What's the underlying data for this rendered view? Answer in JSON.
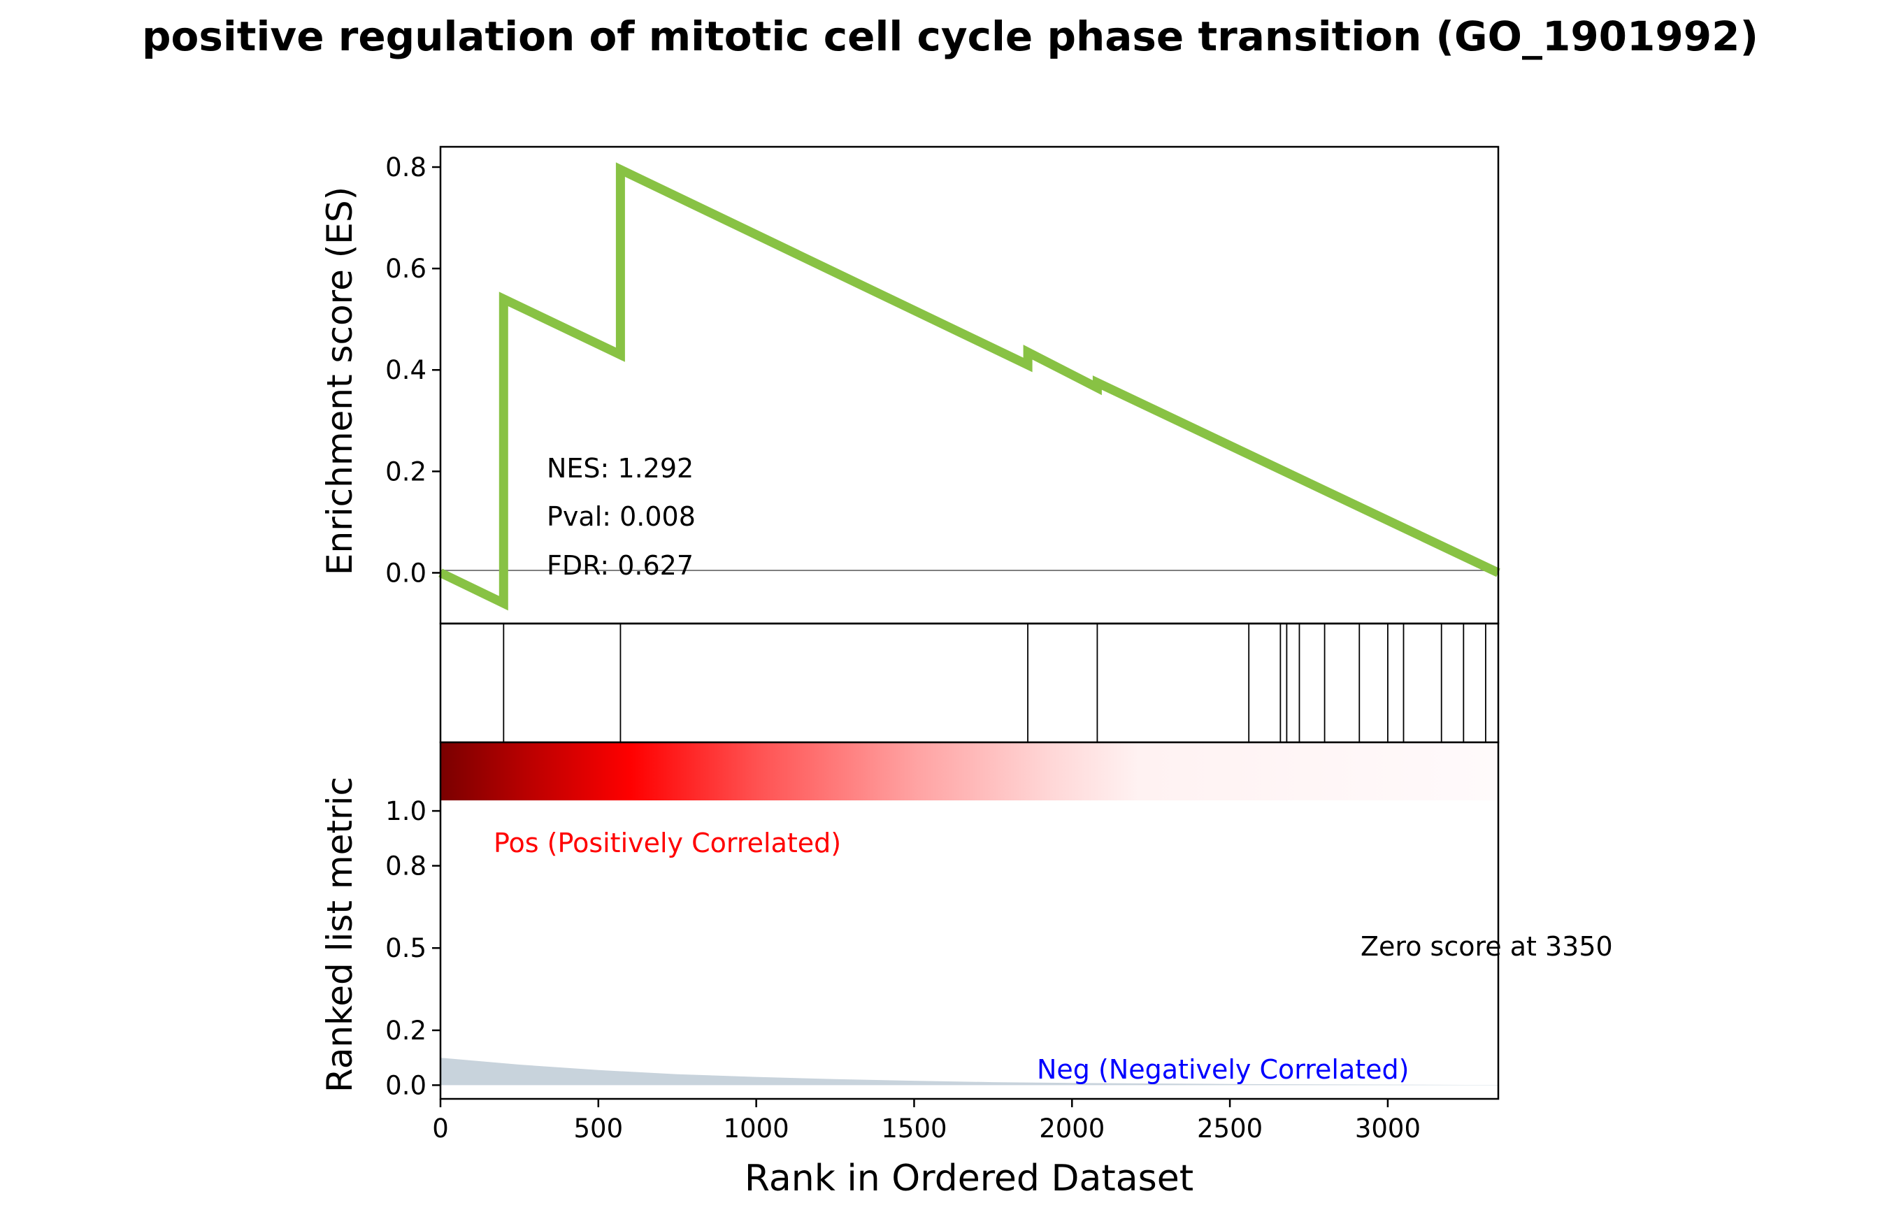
{
  "chart_data": {
    "type": "line",
    "title": "positive regulation of mitotic cell cycle phase transition (GO_1901992)",
    "xlabel": "Rank in Ordered Dataset",
    "es_panel": {
      "ylabel": "Enrichment score (ES)",
      "ylim": [
        -0.1,
        0.84
      ],
      "yticks": [
        "0.0",
        "0.2",
        "0.4",
        "0.6",
        "0.8"
      ],
      "line_color": "#88c244",
      "series": [
        {
          "x": [
            0,
            200,
            200,
            570,
            570,
            1860,
            1860,
            2080,
            2080,
            3350
          ],
          "y": [
            0.0,
            -0.06,
            0.54,
            0.43,
            0.795,
            0.41,
            0.435,
            0.365,
            0.375,
            0.0
          ]
        }
      ],
      "stats": [
        "NES: 1.292",
        "Pval: 0.008",
        "FDR: 0.627"
      ]
    },
    "hits": {
      "positions": [
        200,
        570,
        1860,
        2080,
        2560,
        2660,
        2680,
        2720,
        2800,
        2910,
        3000,
        3050,
        3170,
        3240,
        3310,
        3350
      ]
    },
    "metric_panel": {
      "ylabel": "Ranked list metric",
      "ylim": [
        -0.05,
        1.25
      ],
      "yticks": [
        "0.0",
        "0.2",
        "0.5",
        "0.8",
        "1.0"
      ],
      "metric": {
        "x": [
          0,
          250,
          500,
          750,
          1000,
          1250,
          1500,
          1750,
          2000,
          2250,
          2500,
          2750,
          3000,
          3250,
          3350
        ],
        "y": [
          0.1,
          0.075,
          0.055,
          0.04,
          0.03,
          0.022,
          0.016,
          0.011,
          0.008,
          0.006,
          0.004,
          0.003,
          0.002,
          0.001,
          0.001
        ]
      },
      "fill_color": "#c8d3dc",
      "pos_label": "Pos (Positively Correlated)",
      "neg_label": "Neg (Negatively Correlated)",
      "zero_label": "Zero score at 3350",
      "pos_color": "#ff0000",
      "neg_color": "#0000ff"
    },
    "xlim": [
      0,
      3350
    ],
    "xticks": [
      0,
      500,
      1000,
      1500,
      2000,
      2500,
      3000
    ]
  }
}
